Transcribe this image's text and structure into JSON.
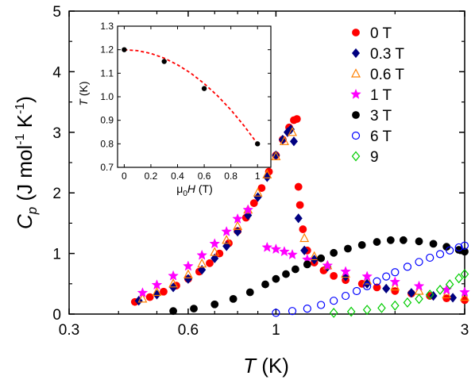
{
  "chart_data": [
    {
      "type": "scatter",
      "xscale": "log",
      "xlim": [
        0.3,
        3
      ],
      "ylim": [
        0,
        5
      ],
      "xticks": [
        0.3,
        0.6,
        1,
        3
      ],
      "xticklabels": [
        "0.3",
        "0.6",
        "1",
        "3"
      ],
      "yticks": [
        0,
        1,
        2,
        3,
        4,
        5
      ],
      "yticklabels": [
        "0",
        "1",
        "2",
        "3",
        "4",
        "5"
      ],
      "xlabel": "T (K)",
      "ylabel": "C_p (J mol^-1 K^-1)",
      "grid": false,
      "legend_position": "top-right",
      "series": [
        {
          "name": "0 T",
          "color": "#ff0000",
          "marker": "sphere",
          "x": [
            0.44,
            0.48,
            0.52,
            0.56,
            0.6,
            0.64,
            0.68,
            0.72,
            0.76,
            0.8,
            0.84,
            0.88,
            0.92,
            0.96,
            1.0,
            1.04,
            1.08,
            1.11,
            1.13,
            1.14,
            1.15,
            1.17,
            1.2,
            1.25,
            1.32,
            1.4,
            1.5,
            1.65,
            1.8,
            2.0,
            2.2,
            2.45,
            2.7,
            3.0
          ],
          "y": [
            0.2,
            0.28,
            0.37,
            0.47,
            0.58,
            0.7,
            0.84,
            1.0,
            1.17,
            1.37,
            1.59,
            1.83,
            2.08,
            2.35,
            2.62,
            2.88,
            3.08,
            3.2,
            3.22,
            2.1,
            1.8,
            1.4,
            1.05,
            0.85,
            0.72,
            0.63,
            0.56,
            0.5,
            0.44,
            0.38,
            0.34,
            0.3,
            0.26,
            0.23
          ]
        },
        {
          "name": "0.3 T",
          "color": "#000080",
          "marker": "diamond-filled",
          "x": [
            0.45,
            0.5,
            0.55,
            0.6,
            0.65,
            0.7,
            0.75,
            0.8,
            0.85,
            0.9,
            0.95,
            1.0,
            1.04,
            1.07,
            1.09,
            1.11,
            1.14,
            1.18,
            1.25,
            1.35,
            1.5,
            1.7,
            1.9,
            2.2,
            2.5,
            2.8
          ],
          "y": [
            0.22,
            0.32,
            0.44,
            0.58,
            0.73,
            0.92,
            1.12,
            1.36,
            1.63,
            1.93,
            2.26,
            2.62,
            2.88,
            3.0,
            3.05,
            2.85,
            1.58,
            1.05,
            0.9,
            0.78,
            0.62,
            0.5,
            0.42,
            0.35,
            0.3,
            0.27
          ]
        },
        {
          "name": "0.6 T",
          "color": "#ff8000",
          "marker": "triangle-open",
          "x": [
            0.46,
            0.5,
            0.55,
            0.6,
            0.65,
            0.7,
            0.75,
            0.8,
            0.85,
            0.9,
            0.95,
            1.0,
            1.05,
            1.1,
            1.18,
            1.25,
            1.35,
            1.5,
            1.7,
            2.0,
            2.3,
            2.7,
            3.0
          ],
          "y": [
            0.25,
            0.36,
            0.5,
            0.65,
            0.83,
            1.02,
            1.22,
            1.45,
            1.72,
            2.0,
            2.3,
            2.6,
            2.85,
            3.0,
            1.25,
            0.95,
            0.8,
            0.66,
            0.55,
            0.45,
            0.38,
            0.32,
            0.28
          ]
        },
        {
          "name": "1 T",
          "color": "#ff00ff",
          "marker": "star",
          "x": [
            0.46,
            0.5,
            0.55,
            0.6,
            0.65,
            0.7,
            0.75,
            0.8,
            0.85,
            0.95,
            1.0,
            1.05,
            1.1,
            1.2,
            1.35,
            1.5,
            1.7,
            2.0,
            2.3,
            2.7,
            3.0
          ],
          "y": [
            0.35,
            0.48,
            0.63,
            0.79,
            0.97,
            1.16,
            1.36,
            1.57,
            1.72,
            1.1,
            1.07,
            1.03,
            0.98,
            0.9,
            0.8,
            0.7,
            0.62,
            0.53,
            0.46,
            0.4,
            0.36
          ]
        },
        {
          "name": "3 T",
          "color": "#000000",
          "marker": "sphere",
          "x": [
            0.55,
            0.62,
            0.7,
            0.78,
            0.86,
            0.94,
            1.0,
            1.06,
            1.12,
            1.2,
            1.3,
            1.4,
            1.52,
            1.65,
            1.8,
            1.95,
            2.1,
            2.3,
            2.5,
            2.7,
            2.9,
            3.0
          ],
          "y": [
            0.05,
            0.09,
            0.16,
            0.25,
            0.36,
            0.49,
            0.58,
            0.66,
            0.74,
            0.82,
            0.92,
            1.01,
            1.08,
            1.14,
            1.19,
            1.22,
            1.22,
            1.2,
            1.16,
            1.11,
            1.06,
            1.03
          ]
        },
        {
          "name": "6 T",
          "color": "#0000ff",
          "marker": "circle-open",
          "x": [
            1.0,
            1.1,
            1.2,
            1.3,
            1.4,
            1.5,
            1.6,
            1.7,
            1.8,
            1.9,
            2.0,
            2.15,
            2.3,
            2.45,
            2.6,
            2.75,
            2.9,
            3.0
          ],
          "y": [
            0.02,
            0.05,
            0.09,
            0.15,
            0.22,
            0.3,
            0.38,
            0.46,
            0.54,
            0.62,
            0.69,
            0.78,
            0.86,
            0.93,
            0.99,
            1.05,
            1.1,
            1.13
          ]
        },
        {
          "name": "9",
          "color": "#00cc00",
          "marker": "diamond-open",
          "x": [
            1.4,
            1.55,
            1.7,
            1.85,
            2.0,
            2.15,
            2.3,
            2.45,
            2.6,
            2.75,
            2.9,
            3.0
          ],
          "y": [
            0.02,
            0.04,
            0.07,
            0.1,
            0.14,
            0.19,
            0.25,
            0.32,
            0.4,
            0.49,
            0.59,
            0.66
          ]
        }
      ]
    },
    {
      "type": "scatter",
      "xlim": [
        -0.05,
        1.1
      ],
      "ylim": [
        0.7,
        1.3
      ],
      "xticks": [
        0,
        0.2,
        0.4,
        0.6,
        0.8,
        1
      ],
      "xticklabels": [
        "0",
        "0.2",
        "0.4",
        "0.6",
        "0.8",
        "1"
      ],
      "yticks": [
        0.7,
        0.8,
        0.9,
        1.0,
        1.1,
        1.2,
        1.3
      ],
      "yticklabels": [
        "0.7",
        "0.8",
        "0.9",
        "1.0",
        "1.1",
        "1.2",
        "1.3"
      ],
      "xlabel": "μ0H (T)",
      "ylabel": "T (K)",
      "grid": false,
      "points": {
        "x": [
          0,
          0.3,
          0.6,
          1.0
        ],
        "y": [
          1.2,
          1.15,
          1.035,
          0.8
        ],
        "color": "#000000"
      },
      "fit": {
        "style": "dashed",
        "color": "#ff0000",
        "x": [
          0,
          0.1,
          0.2,
          0.3,
          0.4,
          0.5,
          0.6,
          0.7,
          0.8,
          0.9,
          1.0
        ],
        "y": [
          1.2,
          1.196,
          1.184,
          1.164,
          1.136,
          1.1,
          1.056,
          1.004,
          0.944,
          0.876,
          0.8
        ]
      }
    }
  ]
}
